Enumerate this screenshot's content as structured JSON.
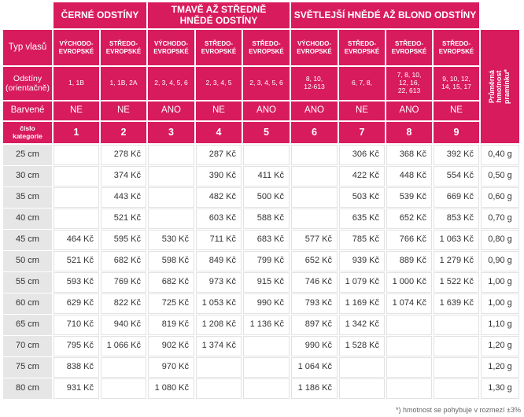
{
  "groups": [
    {
      "label": "ČERNÉ ODSTÍNY"
    },
    {
      "label": "TMAVĚ AŽ STŘEDNĚ\nHNĚDÉ ODSTÍNY"
    },
    {
      "label": "SVĚTLEJŠÍ HNĚDÉ AŽ BLOND ODSTÍNY"
    }
  ],
  "row_headers": {
    "typ": "Typ vlasů",
    "odstiny": "Odstíny\n(orientačně)",
    "barvene": "Barvené",
    "cislo": "číslo\nkategorie"
  },
  "weight_header": "Průměrná\nhmotnost\npramínku*",
  "columns": [
    {
      "typ": "VÝCHODO-\nEVROPSKÉ",
      "odstiny": "1, 1B",
      "barvene": "NE",
      "cat": "1"
    },
    {
      "typ": "STŘEDO-\nEVROPSKÉ",
      "odstiny": "1, 1B, 2A",
      "barvene": "NE",
      "cat": "2"
    },
    {
      "typ": "VÝCHODO-\nEVROPSKÉ",
      "odstiny": "2, 3, 4, 5, 6",
      "barvene": "ANO",
      "cat": "3"
    },
    {
      "typ": "STŘEDO-\nEVROPSKÉ",
      "odstiny": "2, 3, 4, 5",
      "barvene": "NE",
      "cat": "4"
    },
    {
      "typ": "STŘEDO-\nEVROPSKÉ",
      "odstiny": "2, 3, 4, 5, 6",
      "barvene": "ANO",
      "cat": "5"
    },
    {
      "typ": "VÝCHODO-\nEVROPSKÉ",
      "odstiny": "8, 10,\n12-613",
      "barvene": "ANO",
      "cat": "6"
    },
    {
      "typ": "STŘEDO-\nEVROPSKÉ",
      "odstiny": "6, 7, 8,",
      "barvene": "NE",
      "cat": "7"
    },
    {
      "typ": "STŘEDO-\nEVROPSKÉ",
      "odstiny": "7, 8, 10,\n12, 16,\n22, 613",
      "barvene": "ANO",
      "cat": "8"
    },
    {
      "typ": "STŘEDO-\nEVROPSKÉ",
      "odstiny": "9, 10, 12,\n14, 15, 17",
      "barvene": "NE",
      "cat": "9"
    }
  ],
  "rows": [
    {
      "len": "25 cm",
      "prices": [
        "",
        "278 Kč",
        "",
        "287 Kč",
        "",
        "",
        "306 Kč",
        "368 Kč",
        "392 Kč"
      ],
      "weight": "0,40 g"
    },
    {
      "len": "30 cm",
      "prices": [
        "",
        "374 Kč",
        "",
        "390 Kč",
        "411 Kč",
        "",
        "422 Kč",
        "448 Kč",
        "554 Kč"
      ],
      "weight": "0,50 g"
    },
    {
      "len": "35 cm",
      "prices": [
        "",
        "443 Kč",
        "",
        "482 Kč",
        "500 Kč",
        "",
        "503 Kč",
        "539 Kč",
        "669 Kč"
      ],
      "weight": "0,60 g"
    },
    {
      "len": "40 cm",
      "prices": [
        "",
        "521 Kč",
        "",
        "603 Kč",
        "588 Kč",
        "",
        "635 Kč",
        "652 Kč",
        "853 Kč"
      ],
      "weight": "0,70 g"
    },
    {
      "len": "45 cm",
      "prices": [
        "464 Kč",
        "595 Kč",
        "530 Kč",
        "711 Kč",
        "683 Kč",
        "577 Kč",
        "785 Kč",
        "766 Kč",
        "1 063 Kč"
      ],
      "weight": "0,80 g"
    },
    {
      "len": "50 cm",
      "prices": [
        "521 Kč",
        "682 Kč",
        "598 Kč",
        "849 Kč",
        "799 Kč",
        "652 Kč",
        "939 Kč",
        "889 Kč",
        "1 279 Kč"
      ],
      "weight": "0,90 g"
    },
    {
      "len": "55 cm",
      "prices": [
        "593 Kč",
        "769 Kč",
        "682 Kč",
        "973 Kč",
        "915 Kč",
        "746 Kč",
        "1 079 Kč",
        "1 000 Kč",
        "1 522 Kč"
      ],
      "weight": "1,00 g"
    },
    {
      "len": "60 cm",
      "prices": [
        "629 Kč",
        "822 Kč",
        "725 Kč",
        "1 053 Kč",
        "990 Kč",
        "793 Kč",
        "1 169 Kč",
        "1 074 Kč",
        "1 639 Kč"
      ],
      "weight": "1,00 g"
    },
    {
      "len": "65 cm",
      "prices": [
        "710 Kč",
        "940 Kč",
        "819 Kč",
        "1 208 Kč",
        "1 136 Kč",
        "897 Kč",
        "1 342 Kč",
        "",
        ""
      ],
      "weight": "1,10 g"
    },
    {
      "len": "70 cm",
      "prices": [
        "795 Kč",
        "1 066 Kč",
        "902 Kč",
        "1 374 Kč",
        "",
        "990 Kč",
        "1 528 Kč",
        "",
        ""
      ],
      "weight": "1,20 g"
    },
    {
      "len": "75 cm",
      "prices": [
        "838 Kč",
        "",
        "970 Kč",
        "",
        "",
        "1 064 Kč",
        "",
        "",
        ""
      ],
      "weight": "1,20 g"
    },
    {
      "len": "80 cm",
      "prices": [
        "931 Kč",
        "",
        "1 080 Kč",
        "",
        "",
        "1 186 Kč",
        "",
        "",
        ""
      ],
      "weight": "1,30 g"
    }
  ],
  "footnote": "*) hmotnost se pohybuje v rozmezí ±3%",
  "colors": {
    "accent": "#d81b5c",
    "rowhead_gray": "#e6e6e6"
  }
}
